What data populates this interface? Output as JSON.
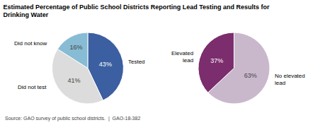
{
  "chart_data": [
    {
      "type": "pie",
      "title": "Estimated Percentage of Public School Districts Reporting Lead Testing and Results for\nDrinking Water",
      "annotations": [
        "Source: GAO survey of public school districts.  |  GAO-18-382"
      ],
      "categories": [
        "Tested",
        "Did not test",
        "Did not know"
      ],
      "values": [
        43,
        41,
        16
      ],
      "value_labels": [
        "43%",
        "41%",
        "16%"
      ],
      "colors": [
        "#3b5fa0",
        "#dcdcdc",
        "#87bcd4"
      ],
      "data_labels": true
    },
    {
      "type": "pie",
      "categories": [
        "No elevated\nlead",
        "Elevated\nlead"
      ],
      "values": [
        63,
        37
      ],
      "value_labels": [
        "63%",
        "37%"
      ],
      "colors": [
        "#c9b8cc",
        "#7b2d6e"
      ],
      "data_labels": true
    }
  ]
}
